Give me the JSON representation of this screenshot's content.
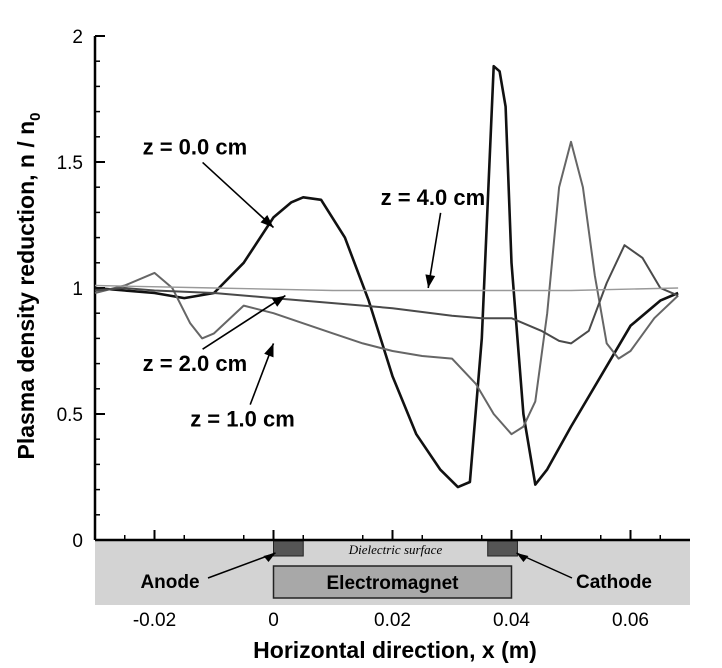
{
  "chart_data": {
    "type": "line",
    "xlabel": "Horizontal direction, x (m)",
    "ylabel": "Plasma density reduction, n / n",
    "ylabel_sub": "0",
    "xlim": [
      -0.03,
      0.07
    ],
    "ylim": [
      0,
      2
    ],
    "x_ticks": [
      -0.02,
      0,
      0.02,
      0.04,
      0.06
    ],
    "x_tick_labels": [
      "-0.02",
      "0",
      "0.02",
      "0.04",
      "0.06"
    ],
    "y_ticks": [
      0,
      0.5,
      1,
      1.5,
      2
    ],
    "y_tick_labels": [
      "0",
      "0.5",
      "1",
      "1.5",
      "2"
    ],
    "grid": false,
    "series": [
      {
        "name": "z = 0.0 cm",
        "color": "#111111",
        "x": [
          -0.03,
          -0.025,
          -0.02,
          -0.015,
          -0.01,
          -0.005,
          0,
          0.003,
          0.005,
          0.008,
          0.012,
          0.016,
          0.02,
          0.024,
          0.028,
          0.031,
          0.033,
          0.035,
          0.037,
          0.038,
          0.039,
          0.04,
          0.042,
          0.044,
          0.046,
          0.05,
          0.055,
          0.06,
          0.065,
          0.068
        ],
        "y": [
          1.0,
          0.99,
          0.98,
          0.96,
          0.98,
          1.1,
          1.28,
          1.34,
          1.36,
          1.35,
          1.2,
          0.95,
          0.65,
          0.42,
          0.28,
          0.21,
          0.23,
          0.8,
          1.88,
          1.86,
          1.72,
          1.1,
          0.5,
          0.22,
          0.28,
          0.45,
          0.65,
          0.85,
          0.95,
          0.98
        ]
      },
      {
        "name": "z = 1.0 cm",
        "color": "#666666",
        "x": [
          -0.03,
          -0.025,
          -0.02,
          -0.017,
          -0.014,
          -0.012,
          -0.01,
          -0.005,
          0,
          0.005,
          0.01,
          0.015,
          0.02,
          0.025,
          0.03,
          0.034,
          0.037,
          0.04,
          0.042,
          0.044,
          0.046,
          0.048,
          0.05,
          0.052,
          0.054,
          0.056,
          0.058,
          0.06,
          0.064,
          0.068
        ],
        "y": [
          0.98,
          1.01,
          1.06,
          1.0,
          0.86,
          0.8,
          0.82,
          0.93,
          0.9,
          0.86,
          0.82,
          0.78,
          0.75,
          0.73,
          0.72,
          0.62,
          0.5,
          0.42,
          0.45,
          0.55,
          0.9,
          1.4,
          1.58,
          1.4,
          1.05,
          0.78,
          0.72,
          0.75,
          0.88,
          0.97
        ]
      },
      {
        "name": "z = 2.0 cm",
        "color": "#4a4a4a",
        "x": [
          -0.03,
          -0.025,
          -0.02,
          -0.01,
          0,
          0.01,
          0.02,
          0.03,
          0.035,
          0.04,
          0.045,
          0.048,
          0.05,
          0.053,
          0.056,
          0.059,
          0.062,
          0.065,
          0.068
        ],
        "y": [
          0.99,
          1.0,
          0.99,
          0.98,
          0.96,
          0.94,
          0.92,
          0.89,
          0.88,
          0.88,
          0.83,
          0.79,
          0.78,
          0.83,
          1.02,
          1.17,
          1.12,
          1.0,
          0.97
        ]
      },
      {
        "name": "z = 4.0 cm",
        "color": "#999999",
        "x": [
          -0.03,
          -0.01,
          0.01,
          0.03,
          0.05,
          0.068
        ],
        "y": [
          1.01,
          1.0,
          0.99,
          0.99,
          0.99,
          1.0
        ]
      }
    ],
    "annotations": [
      {
        "text": "z = 0.0 cm",
        "x": -0.022,
        "y": 1.53,
        "arrow_to_x": 0.0,
        "arrow_to_y": 1.24
      },
      {
        "text": "z = 4.0 cm",
        "x": 0.018,
        "y": 1.33,
        "arrow_to_x": 0.026,
        "arrow_to_y": 1.0
      },
      {
        "text": "z = 2.0 cm",
        "x": -0.022,
        "y": 0.67,
        "arrow_to_x": 0.002,
        "arrow_to_y": 0.97
      },
      {
        "text": "z = 1.0 cm",
        "x": -0.014,
        "y": 0.45,
        "arrow_to_x": 0.0,
        "arrow_to_y": 0.78
      }
    ],
    "device": {
      "dielectric": "Dielectric surface",
      "anode": "Anode",
      "electromagnet": "Electromagnet",
      "cathode": "Cathode",
      "anode_x": [
        0,
        0.005
      ],
      "cathode_x": [
        0.036,
        0.041
      ],
      "electromagnet_x": [
        0,
        0.04
      ],
      "colors": {
        "base": "#d3d3d3",
        "electrode": "#555555",
        "magnet": "#a8a8a8"
      }
    }
  }
}
